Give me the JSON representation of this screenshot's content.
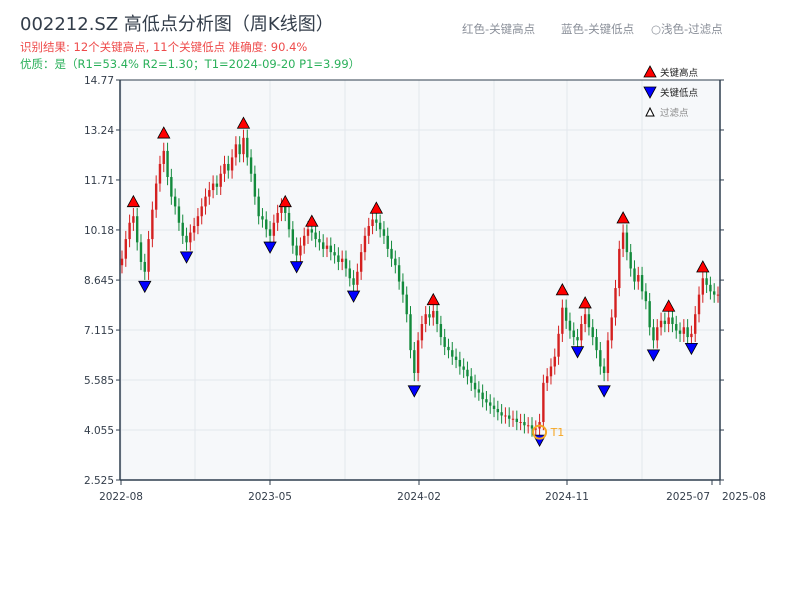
{
  "title": "002212.SZ 高低点分析图（周K线图）",
  "subtitle_result": "识别结果: 12个关键高点, 11个关键低点  准确度: 90.4%",
  "subtitle_quality": "优质：是（R1=53.4%  R2=1.30；T1=2024-09-20 P1=3.99）",
  "hints": [
    "红色-关键高点",
    "蓝色-关键低点",
    "○浅色-过滤点"
  ],
  "chart_data": {
    "type": "candlestick",
    "ylim": [
      2.525,
      14.77
    ],
    "yticks": [
      2.525,
      4.055,
      5.585,
      7.115,
      8.645,
      10.18,
      11.71,
      13.24,
      14.77
    ],
    "ytick_labels": [
      "2.525",
      "4.055",
      "5.585",
      "7.115",
      "8.645",
      "10.18",
      "11.71",
      "13.24",
      "14.77"
    ],
    "xtick_labels": [
      "2022-08",
      "2023-05",
      "2024-02",
      "2024-11",
      "2025-07",
      "2025-08"
    ],
    "grid": true,
    "legend": {
      "placement": "top-right",
      "entries": [
        "关键高点",
        "关键低点",
        "过滤点"
      ]
    },
    "colors": {
      "up": "#d42020",
      "down": "#138a3c",
      "high_marker": "#ff0000",
      "low_marker": "#0000ff",
      "t1": "#f5a623",
      "plot_bg": "#f6f8fa"
    },
    "weekly_close": [
      9.3,
      9.9,
      10.4,
      10.6,
      9.8,
      9.2,
      8.9,
      9.9,
      10.8,
      11.6,
      12.2,
      12.6,
      11.8,
      11.2,
      10.9,
      10.4,
      10.0,
      9.8,
      10.1,
      10.3,
      10.6,
      10.9,
      11.2,
      11.4,
      11.6,
      11.5,
      11.9,
      12.2,
      12.0,
      12.4,
      12.8,
      12.5,
      13.0,
      12.4,
      11.9,
      11.2,
      10.6,
      10.5,
      10.2,
      10.0,
      10.4,
      10.7,
      10.9,
      10.7,
      10.2,
      9.7,
      9.4,
      9.7,
      10.0,
      10.2,
      10.1,
      9.9,
      9.8,
      9.6,
      9.7,
      9.5,
      9.4,
      9.2,
      9.3,
      9.0,
      8.7,
      8.5,
      8.9,
      9.5,
      10.0,
      10.3,
      10.5,
      10.4,
      10.2,
      10.0,
      9.6,
      9.3,
      9.1,
      8.6,
      8.2,
      7.6,
      6.5,
      5.8,
      6.8,
      7.3,
      7.6,
      7.5,
      7.7,
      7.3,
      6.9,
      6.6,
      6.5,
      6.3,
      6.2,
      6.0,
      5.9,
      5.7,
      5.5,
      5.3,
      5.2,
      5.0,
      4.9,
      4.8,
      4.7,
      4.6,
      4.5,
      4.5,
      4.4,
      4.4,
      4.3,
      4.3,
      4.2,
      4.2,
      4.1,
      4.1,
      4.3,
      5.5,
      5.7,
      6.0,
      6.3,
      7.0,
      7.8,
      7.4,
      7.1,
      6.9,
      6.8,
      7.3,
      7.6,
      7.2,
      6.9,
      6.5,
      6.0,
      5.8,
      6.8,
      7.5,
      8.4,
      9.6,
      10.1,
      9.5,
      9.0,
      8.6,
      8.8,
      8.3,
      8.0,
      7.2,
      6.8,
      7.2,
      7.4,
      7.3,
      7.5,
      7.3,
      7.1,
      7.0,
      7.2,
      6.9,
      7.0,
      7.6,
      8.2,
      8.7,
      8.5,
      8.3,
      8.2,
      8.2
    ],
    "key_highs": [
      {
        "week": 3,
        "price": 10.8
      },
      {
        "week": 11,
        "price": 12.9
      },
      {
        "week": 32,
        "price": 13.2
      },
      {
        "week": 43,
        "price": 10.8
      },
      {
        "week": 50,
        "price": 10.2
      },
      {
        "week": 67,
        "price": 10.6
      },
      {
        "week": 82,
        "price": 7.8
      },
      {
        "week": 116,
        "price": 8.1
      },
      {
        "week": 122,
        "price": 7.7
      },
      {
        "week": 132,
        "price": 10.3
      },
      {
        "week": 144,
        "price": 7.6
      },
      {
        "week": 153,
        "price": 8.8
      }
    ],
    "key_lows": [
      {
        "week": 6,
        "price": 8.7
      },
      {
        "week": 17,
        "price": 9.6
      },
      {
        "week": 39,
        "price": 9.9
      },
      {
        "week": 46,
        "price": 9.3
      },
      {
        "week": 61,
        "price": 8.4
      },
      {
        "week": 77,
        "price": 5.5
      },
      {
        "week": 110,
        "price": 3.99
      },
      {
        "week": 120,
        "price": 6.7
      },
      {
        "week": 127,
        "price": 5.5
      },
      {
        "week": 140,
        "price": 6.6
      },
      {
        "week": 150,
        "price": 6.8
      }
    ],
    "t1": {
      "label": "T1",
      "week": 110,
      "price": 3.99
    }
  }
}
